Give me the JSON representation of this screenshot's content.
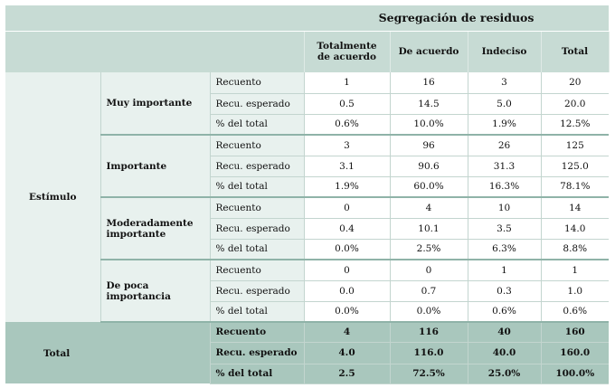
{
  "table": {
    "group_header": "Segregación de residuos",
    "columns": [
      "Totalmente de acuerdo",
      "De acuerdo",
      "Indeciso",
      "Total"
    ],
    "stub_label": "Estímulo",
    "categories": [
      {
        "label": "Muy importante",
        "rows": [
          {
            "stat": "Recuento",
            "values": [
              "1",
              "16",
              "3",
              "20"
            ]
          },
          {
            "stat": "Recu. esperado",
            "values": [
              "0.5",
              "14.5",
              "5.0",
              "20.0"
            ]
          },
          {
            "stat": "% del total",
            "values": [
              "0.6%",
              "10.0%",
              "1.9%",
              "12.5%"
            ]
          }
        ]
      },
      {
        "label": "Importante",
        "rows": [
          {
            "stat": "Recuento",
            "values": [
              "3",
              "96",
              "26",
              "125"
            ]
          },
          {
            "stat": "Recu. esperado",
            "values": [
              "3.1",
              "90.6",
              "31.3",
              "125.0"
            ]
          },
          {
            "stat": "% del total",
            "values": [
              "1.9%",
              "60.0%",
              "16.3%",
              "78.1%"
            ]
          }
        ]
      },
      {
        "label": "Moderadamente importante",
        "rows": [
          {
            "stat": "Recuento",
            "values": [
              "0",
              "4",
              "10",
              "14"
            ]
          },
          {
            "stat": "Recu. esperado",
            "values": [
              "0.4",
              "10.1",
              "3.5",
              "14.0"
            ]
          },
          {
            "stat": "% del total",
            "values": [
              "0.0%",
              "2.5%",
              "6.3%",
              "8.8%"
            ]
          }
        ]
      },
      {
        "label": "De poca importancia",
        "rows": [
          {
            "stat": "Recuento",
            "values": [
              "0",
              "0",
              "1",
              "1"
            ]
          },
          {
            "stat": "Recu. esperado",
            "values": [
              "0.0",
              "0.7",
              "0.3",
              "1.0"
            ]
          },
          {
            "stat": "% del total",
            "values": [
              "0.0%",
              "0.0%",
              "0.6%",
              "0.6%"
            ]
          }
        ]
      }
    ],
    "total": {
      "label": "Total",
      "rows": [
        {
          "stat": "Recuento",
          "values": [
            "4",
            "116",
            "40",
            "160"
          ]
        },
        {
          "stat": "Recu. esperado",
          "values": [
            "4.0",
            "116.0",
            "40.0",
            "160.0"
          ]
        },
        {
          "stat": "% del total",
          "values": [
            "2.5",
            "72.5%",
            "25.0%",
            "100.0%"
          ]
        }
      ]
    }
  }
}
